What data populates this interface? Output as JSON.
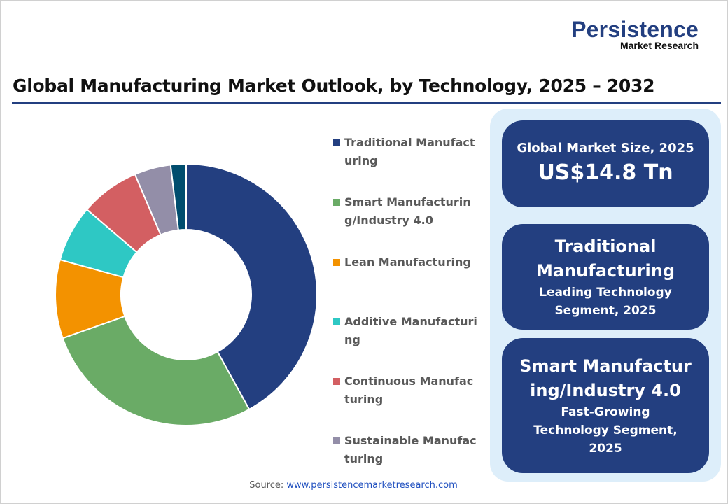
{
  "logo": {
    "line1": "Persistence",
    "line2": "Market Research"
  },
  "title": "Global Manufacturing Market Outlook, by Technology, 2025 – 2032",
  "chart_data": {
    "type": "pie",
    "variant": "donut",
    "unit": "%",
    "legend_position": "right",
    "slices": [
      {
        "name": "Traditional Manufacturing",
        "value": 42.0,
        "color": "#233f80"
      },
      {
        "name": "Smart Manufacturing/Industry 4.0",
        "value": 27.6,
        "color": "#6aab66"
      },
      {
        "name": "Lean Manufacturing",
        "value": 9.7,
        "color": "#f39200"
      },
      {
        "name": "Additive Manufacturing",
        "value": 7.0,
        "color": "#2ec8c4"
      },
      {
        "name": "Continuous Manufacturing",
        "value": 7.3,
        "color": "#d35f62"
      },
      {
        "name": "Sustainable Manufacturing",
        "value": 4.5,
        "color": "#938ea8"
      },
      {
        "value": 1.9,
        "color": "#004d6e"
      }
    ]
  },
  "legend": [
    {
      "label": "Traditional Manufacturing",
      "color": "#233f80"
    },
    {
      "label": "Smart Manufacturing/Industry 4.0",
      "color": "#6aab66"
    },
    {
      "label": "Lean Manufacturing",
      "color": "#f39200"
    },
    {
      "label": "Additive Manufacturing",
      "color": "#2ec8c4"
    },
    {
      "label": "Continuous Manufacturing",
      "color": "#d35f62"
    },
    {
      "label": "Sustainable Manufacturing",
      "color": "#938ea8"
    }
  ],
  "cards": {
    "market_size": {
      "label": "Global Market Size, 2025",
      "value": "US$14.8 Tn"
    },
    "leading": {
      "name": "Traditional Manufacturing",
      "desc": "Leading Technology Segment, 2025"
    },
    "fastest": {
      "name": "Smart Manufacturing/Industry 4.0",
      "desc": "Fast-Growing Technology Segment, 2025"
    }
  },
  "source": {
    "label": "Source:",
    "link": "www.persistencemarketresearch.com"
  },
  "colors": {
    "brand": "#233f80",
    "panel": "#ddeefa"
  }
}
